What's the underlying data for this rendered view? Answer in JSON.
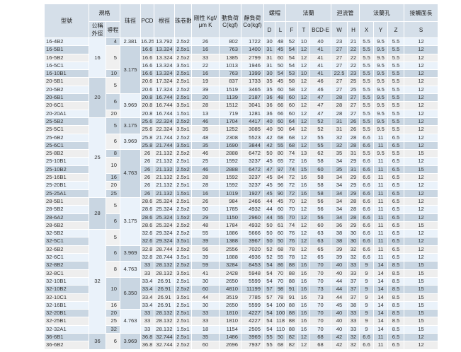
{
  "headers": {
    "model": "型號",
    "spec": "規格",
    "nominal_dia": "公稱外徑",
    "lead": "導程",
    "ball_dia": "珠徑",
    "pcd": "PCD",
    "root_dia": "根徑",
    "circuits": "珠卷數",
    "rigidity": "剛性 Kgf/μm K",
    "dynamic_load": "動負荷 C(kgf)",
    "static_load": "靜負荷 Co(kgf)",
    "nut": "螺帽",
    "flange": "法蘭",
    "return_tube": "迴流管",
    "flange_hole": "法蘭孔",
    "contact_length": "接觸面長",
    "D": "D",
    "L": "L",
    "F": "F",
    "T": "T",
    "BCD": "BCD-E",
    "W": "W",
    "H": "H",
    "X": "X",
    "Y": "Y",
    "Z": "Z",
    "S": "S"
  },
  "nominal_dia_groups": [
    {
      "value": "16",
      "rows": 5
    },
    {
      "value": "20",
      "rows": 5
    },
    {
      "value": "25",
      "rows": 10
    },
    {
      "value": "28",
      "rows": 4
    },
    {
      "value": "32",
      "rows": 13
    },
    {
      "value": "36",
      "rows": 2
    }
  ],
  "lead_groups": [
    {
      "value": "4",
      "rows": 1
    },
    {
      "value": "5",
      "rows": 3
    },
    {
      "value": "10",
      "rows": 1
    },
    {
      "value": "5",
      "rows": 2
    },
    {
      "value": "6",
      "rows": 2
    },
    {
      "value": "20",
      "rows": 1
    },
    {
      "value": "5",
      "rows": 2
    },
    {
      "value": "6",
      "rows": 2
    },
    {
      "value": "8",
      "rows": 1
    },
    {
      "value": "10",
      "rows": 2
    },
    {
      "value": "16",
      "rows": 1
    },
    {
      "value": "20",
      "rows": 1
    },
    {
      "value": "25",
      "rows": 1
    },
    {
      "value": "5",
      "rows": 2
    },
    {
      "value": "6",
      "rows": 2
    },
    {
      "value": "5",
      "rows": 2
    },
    {
      "value": "6",
      "rows": 2
    },
    {
      "value": "8",
      "rows": 2
    },
    {
      "value": "10",
      "rows": 3
    },
    {
      "value": "16",
      "rows": 1
    },
    {
      "value": "20",
      "rows": 1
    },
    {
      "value": "25",
      "rows": 1
    },
    {
      "value": "32",
      "rows": 1
    },
    {
      "value": "6",
      "rows": 2
    }
  ],
  "ball_dia_groups": [
    {
      "value": "2.381",
      "rows": 1
    },
    {
      "value": "3.175",
      "rows": 6
    },
    {
      "value": "3.969",
      "rows": 3
    },
    {
      "value": "3.175",
      "rows": 2
    },
    {
      "value": "3.969",
      "rows": 2
    },
    {
      "value": "4.763",
      "rows": 6
    },
    {
      "value": "3.175",
      "rows": 6
    },
    {
      "value": "3.969",
      "rows": 2
    },
    {
      "value": "4.763",
      "rows": 2
    },
    {
      "value": "6.350",
      "rows": 4
    },
    {
      "value": "4.763",
      "rows": 3
    },
    {
      "value": "3.969",
      "rows": 2
    }
  ],
  "rows": [
    [
      "16-4B2",
      "16.25",
      "13.792",
      "2.5x2",
      "26",
      "802",
      "1722",
      "30",
      "48",
      "52",
      "10",
      "40",
      "23",
      "21",
      "5.5",
      "9.5",
      "5.5",
      "12"
    ],
    [
      "16-5B1",
      "16.6",
      "13.324",
      "2.5x1",
      "16",
      "763",
      "1400",
      "31",
      "45",
      "54",
      "12",
      "41",
      "27",
      "22",
      "5.5",
      "9.5",
      "5.5",
      "12"
    ],
    [
      "16-5B2",
      "16.6",
      "13.324",
      "2.5x2",
      "33",
      "1385",
      "2799",
      "31",
      "60",
      "54",
      "12",
      "41",
      "27",
      "22",
      "5.5",
      "9.5",
      "5.5",
      "12"
    ],
    [
      "16-5C1",
      "16.6",
      "13.324",
      "3.5x1",
      "22",
      "1013",
      "1946",
      "31",
      "50",
      "54",
      "12",
      "41",
      "27",
      "22",
      "5.5",
      "9.5",
      "5.5",
      "12"
    ],
    [
      "16-10B1",
      "16.6",
      "13.324",
      "2.5x1",
      "16",
      "763",
      "1399",
      "30",
      "54",
      "53",
      "10",
      "41",
      "22.5",
      "23",
      "5.5",
      "9.5",
      "5.5",
      "12"
    ],
    [
      "20-5B1",
      "20.6",
      "17.324",
      "2.5x1",
      "19",
      "837",
      "1733",
      "35",
      "45",
      "58",
      "12",
      "46",
      "27",
      "25",
      "5.5",
      "9.5",
      "5.5",
      "12"
    ],
    [
      "20-5B2",
      "20.6",
      "17.324",
      "2.5x2",
      "39",
      "1519",
      "3465",
      "35",
      "60",
      "58",
      "12",
      "46",
      "27",
      "25",
      "5.5",
      "9.5",
      "5.5",
      "12"
    ],
    [
      "20-6B1",
      "20.8",
      "16.744",
      "2.5x1",
      "20",
      "1139",
      "2187",
      "36",
      "48",
      "60",
      "12",
      "47",
      "28",
      "27",
      "5.5",
      "9.5",
      "5.5",
      "12"
    ],
    [
      "20-6C1",
      "20.8",
      "16.744",
      "3.5x1",
      "28",
      "1512",
      "3041",
      "36",
      "66",
      "60",
      "12",
      "47",
      "28",
      "27",
      "5.5",
      "9.5",
      "5.5",
      "12"
    ],
    [
      "20-20A1",
      "20.8",
      "16.744",
      "1.5x1",
      "13",
      "719",
      "1281",
      "36",
      "66",
      "60",
      "12",
      "47",
      "28",
      "27",
      "5.5",
      "9.5",
      "5.5",
      "12"
    ],
    [
      "25-5B2",
      "25.6",
      "22.324",
      "2.5x2",
      "46",
      "1704",
      "4417",
      "40",
      "60",
      "64",
      "12",
      "52",
      "31",
      "26",
      "5.5",
      "9.5",
      "5.5",
      "12"
    ],
    [
      "25-5C1",
      "25.6",
      "22.324",
      "3.5x1",
      "35",
      "1252",
      "3085",
      "40",
      "50",
      "64",
      "12",
      "52",
      "31",
      "26",
      "5.5",
      "9.5",
      "5.5",
      "12"
    ],
    [
      "25-6B2",
      "25.8",
      "21.744",
      "2.5x2",
      "48",
      "2308",
      "5523",
      "42",
      "68",
      "68",
      "12",
      "55",
      "32",
      "28",
      "6.6",
      "11",
      "6.5",
      "12"
    ],
    [
      "25-6C1",
      "25.8",
      "21.744",
      "3.5x1",
      "35",
      "1690",
      "3844",
      "42",
      "55",
      "68",
      "12",
      "55",
      "32",
      "28",
      "6.6",
      "11",
      "6.5",
      "12"
    ],
    [
      "25-8B2",
      "26",
      "21.132",
      "2.5x2",
      "46",
      "2888",
      "6472",
      "50",
      "80",
      "74",
      "13",
      "62",
      "35",
      "31",
      "5.5",
      "9.5",
      "5.5",
      "15"
    ],
    [
      "25-10B1",
      "26",
      "21.132",
      "2.5x1",
      "25",
      "1592",
      "3237",
      "45",
      "65",
      "72",
      "16",
      "58",
      "34",
      "29",
      "6.6",
      "11",
      "6.5",
      "12"
    ],
    [
      "25-10B2",
      "26",
      "21.132",
      "2.5x2",
      "46",
      "2888",
      "6472",
      "47",
      "97",
      "74",
      "15",
      "60",
      "35",
      "31",
      "6.6",
      "11",
      "6.5",
      "15"
    ],
    [
      "25-16B1",
      "26",
      "21.132",
      "2.5x1",
      "28",
      "1592",
      "3237",
      "45",
      "84",
      "72",
      "16",
      "58",
      "34",
      "29",
      "6.6",
      "11",
      "6.5",
      "12"
    ],
    [
      "25-20B1",
      "26",
      "21.132",
      "2.5x1",
      "28",
      "1592",
      "3237",
      "45",
      "96",
      "72",
      "16",
      "58",
      "34",
      "29",
      "6.6",
      "11",
      "6.5",
      "12"
    ],
    [
      "25-25A1",
      "26",
      "21.132",
      "1.5x1",
      "16",
      "1019",
      "1927",
      "45",
      "90",
      "72",
      "16",
      "58",
      "34",
      "29",
      "6.6",
      "11",
      "6.5",
      "12"
    ],
    [
      "28-5B1",
      "28.6",
      "25.324",
      "2.5x1",
      "26",
      "984",
      "2466",
      "44",
      "45",
      "70",
      "12",
      "56",
      "34",
      "28",
      "6.6",
      "11",
      "6.5",
      "12"
    ],
    [
      "28-5B2",
      "28.6",
      "25.324",
      "2.5x2",
      "50",
      "1785",
      "4932",
      "44",
      "60",
      "70",
      "12",
      "56",
      "34",
      "28",
      "6.6",
      "11",
      "6.5",
      "12"
    ],
    [
      "28-6A2",
      "28.6",
      "25.324",
      "1.5x2",
      "29",
      "1150",
      "2960",
      "44",
      "55",
      "70",
      "12",
      "56",
      "34",
      "28",
      "6.6",
      "11",
      "6.5",
      "12"
    ],
    [
      "28-6B2",
      "28.6",
      "25.324",
      "2.5x2",
      "48",
      "1784",
      "4932",
      "50",
      "61",
      "74",
      "12",
      "60",
      "36",
      "29",
      "6.6",
      "11",
      "6.5",
      "15"
    ],
    [
      "32-5B2",
      "32.6",
      "29.324",
      "2.5x2",
      "55",
      "1886",
      "5666",
      "50",
      "60",
      "76",
      "12",
      "63",
      "38",
      "30",
      "6.6",
      "11",
      "6.5",
      "12"
    ],
    [
      "32-5C1",
      "32.6",
      "29.324",
      "3.5x1",
      "39",
      "1388",
      "3967",
      "50",
      "50",
      "76",
      "12",
      "63",
      "38",
      "30",
      "6.6",
      "11",
      "6.5",
      "12"
    ],
    [
      "32-6B2",
      "32.8",
      "28.744",
      "2.5x2",
      "56",
      "2556",
      "7020",
      "52",
      "68",
      "78",
      "12",
      "65",
      "39",
      "32",
      "6.6",
      "11",
      "6.5",
      "12"
    ],
    [
      "32-6C1",
      "32.8",
      "28.744",
      "3.5x1",
      "39",
      "1888",
      "4936",
      "52",
      "55",
      "78",
      "12",
      "65",
      "39",
      "32",
      "6.6",
      "11",
      "6.5",
      "12"
    ],
    [
      "32-8B2",
      "33",
      "28.132",
      "2.5x2",
      "59",
      "3284",
      "8453",
      "54",
      "86",
      "88",
      "16",
      "70",
      "40",
      "33",
      "9",
      "14",
      "8.5",
      "15"
    ],
    [
      "32-8C1",
      "33",
      "28.132",
      "3.5x1",
      "41",
      "2428",
      "5948",
      "54",
      "70",
      "88",
      "16",
      "70",
      "40",
      "33",
      "9",
      "14",
      "8.5",
      "15"
    ],
    [
      "32-10B1",
      "33.4",
      "26.91",
      "2.5x1",
      "30",
      "2650",
      "5599",
      "54",
      "70",
      "88",
      "16",
      "70",
      "44",
      "37",
      "9",
      "14",
      "8.5",
      "15"
    ],
    [
      "32-10B2",
      "33.4",
      "26.91",
      "2.5x2",
      "60",
      "4810",
      "11199",
      "57",
      "98",
      "91",
      "16",
      "73",
      "44",
      "37",
      "9",
      "14",
      "8.5",
      "15"
    ],
    [
      "32-10C1",
      "33.4",
      "26.91",
      "3.5x1",
      "44",
      "3519",
      "7785",
      "57",
      "78",
      "91",
      "16",
      "73",
      "44",
      "37",
      "9",
      "14",
      "8.5",
      "15"
    ],
    [
      "32-16B1",
      "33.4",
      "26.91",
      "2.5x1",
      "30",
      "2650",
      "5599",
      "54",
      "100",
      "88",
      "16",
      "70",
      "45",
      "38",
      "9",
      "14",
      "8.5",
      "15"
    ],
    [
      "32-20B1",
      "33",
      "28.132",
      "2.5x1",
      "33",
      "1810",
      "4227",
      "54",
      "100",
      "88",
      "16",
      "70",
      "40",
      "33",
      "9",
      "14",
      "8.5",
      "15"
    ],
    [
      "32-25B1",
      "33",
      "28.132",
      "2.5x1",
      "33",
      "1810",
      "4227",
      "54",
      "118",
      "88",
      "16",
      "70",
      "40",
      "33",
      "9",
      "14",
      "8.5",
      "15"
    ],
    [
      "32-32A1",
      "33",
      "28.132",
      "1.5x1",
      "18",
      "1154",
      "2505",
      "54",
      "110",
      "88",
      "16",
      "70",
      "40",
      "33",
      "9",
      "14",
      "8.5",
      "15"
    ],
    [
      "36-6B1",
      "36.8",
      "32.744",
      "2.5x1",
      "35",
      "1486",
      "3969",
      "55",
      "50",
      "82",
      "12",
      "68",
      "42",
      "32",
      "6.6",
      "11",
      "6.5",
      "12"
    ],
    [
      "36-6B2",
      "36.8",
      "32.744",
      "2.5x2",
      "60",
      "2696",
      "7937",
      "55",
      "68",
      "82",
      "12",
      "68",
      "42",
      "32",
      "6.6",
      "11",
      "6.5",
      "12"
    ]
  ]
}
